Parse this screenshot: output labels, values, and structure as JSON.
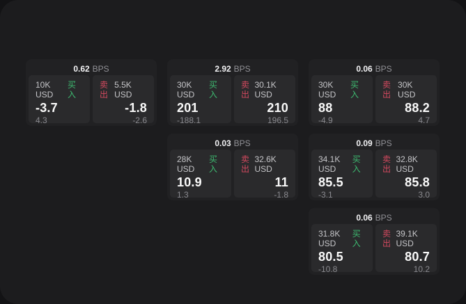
{
  "labels": {
    "bps": "BPS",
    "buy": "买入",
    "sell": "卖出"
  },
  "colors": {
    "backdrop": "#131315",
    "panel_background": "#1c1c1e",
    "card_background": "#212123",
    "tile_background": "#2a2a2c",
    "buy_green": "#3dba70",
    "sell_red": "#d4495f",
    "value_text": "#fafafa",
    "amount_text": "#c6c6c9",
    "muted_text": "#8a8a8f"
  },
  "cards": [
    {
      "bps": "0.62",
      "buy": {
        "amount": "10K USD",
        "value": "-3.7",
        "change": "4.3"
      },
      "sell": {
        "amount": "5.5K USD",
        "value": "-1.8",
        "change": "-2.6"
      }
    },
    {
      "bps": "2.92",
      "buy": {
        "amount": "30K USD",
        "value": "201",
        "change": "-188.1"
      },
      "sell": {
        "amount": "30.1K USD",
        "value": "210",
        "change": "196.5"
      }
    },
    {
      "bps": "0.06",
      "buy": {
        "amount": "30K USD",
        "value": "88",
        "change": "-4.9"
      },
      "sell": {
        "amount": "30K USD",
        "value": "88.2",
        "change": "4.7"
      }
    },
    {
      "bps": "0.03",
      "buy": {
        "amount": "28K USD",
        "value": "10.9",
        "change": "1.3"
      },
      "sell": {
        "amount": "32.6K USD",
        "value": "11",
        "change": "-1.8"
      }
    },
    {
      "bps": "0.09",
      "buy": {
        "amount": "34.1K USD",
        "value": "85.5",
        "change": "-3.1"
      },
      "sell": {
        "amount": "32.8K USD",
        "value": "85.8",
        "change": "3.0"
      }
    },
    {
      "bps": "0.06",
      "buy": {
        "amount": "31.8K USD",
        "value": "80.5",
        "change": "-10.8"
      },
      "sell": {
        "amount": "39.1K USD",
        "value": "80.7",
        "change": "10.2"
      }
    }
  ]
}
